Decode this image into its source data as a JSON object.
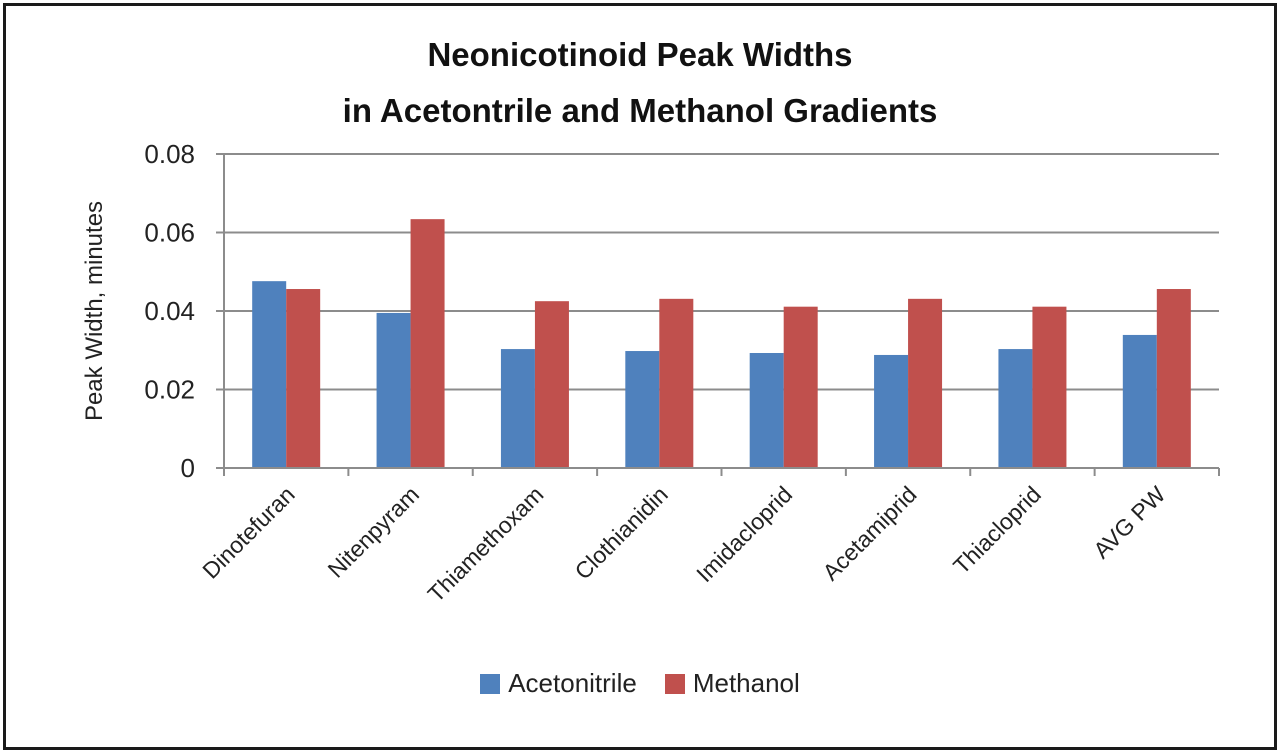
{
  "chart_data": {
    "type": "bar",
    "title": "Neonicotinoid Peak Widths",
    "subtitle": "in Acetontrile and Methanol  Gradients",
    "xlabel": "",
    "ylabel": "Peak Width, minutes",
    "ylim": [
      0,
      0.08
    ],
    "yticks": [
      "0",
      "0.02",
      "0.04",
      "0.06",
      "0.08"
    ],
    "grid": true,
    "legend_position": "bottom",
    "categories": [
      "Dinotefuran",
      "Nitenpyram",
      "Thiamethoxam",
      "Clothianidin",
      "Imidacloprid",
      "Acetamiprid",
      "Thiacloprid",
      "AVG PW"
    ],
    "series": [
      {
        "name": "Acetonitrile",
        "color": "#4F81BD",
        "values": [
          0.0476,
          0.0395,
          0.0303,
          0.0298,
          0.0293,
          0.0288,
          0.0303,
          0.0339
        ]
      },
      {
        "name": "Methanol",
        "color": "#C0504D",
        "values": [
          0.0456,
          0.0634,
          0.0425,
          0.0431,
          0.0411,
          0.0431,
          0.0411,
          0.0456
        ]
      }
    ]
  },
  "header": {
    "title_line1": "Neonicotinoid Peak Widths",
    "title_line2": "in Acetontrile and Methanol  Gradients"
  },
  "legend": {
    "items": [
      {
        "label": "Acetonitrile",
        "color": "#4F81BD"
      },
      {
        "label": "Methanol",
        "color": "#C0504D"
      }
    ]
  }
}
